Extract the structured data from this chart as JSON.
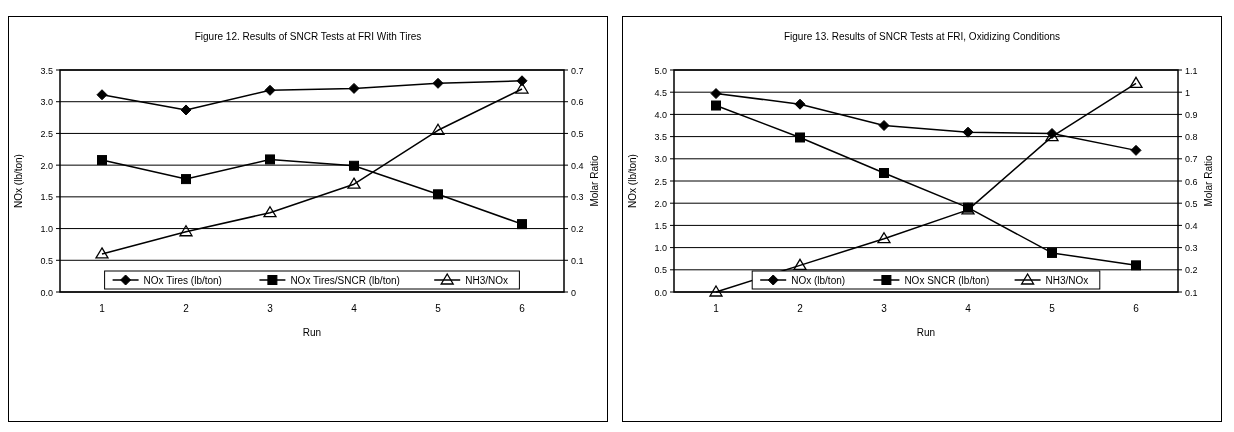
{
  "chart_data": [
    {
      "type": "line",
      "title": "Figure 12.  Results of SNCR Tests at FRI With Tires",
      "xlabel": "Run",
      "ylabel": "NOx (lb/ton)",
      "y2label": "Molar Ratio",
      "categories": [
        "1",
        "2",
        "3",
        "4",
        "5",
        "6"
      ],
      "ylim": [
        0,
        3.5
      ],
      "yticks": [
        {
          "value": 0,
          "label": "0.0"
        },
        0.5,
        {
          "value": 1,
          "label": "1.0"
        },
        1.5,
        {
          "value": 2,
          "label": "2.0"
        },
        2.5,
        {
          "value": 3,
          "label": "3.0"
        },
        3.5
      ],
      "y2lim": [
        0,
        0.7
      ],
      "y2ticks": [
        0,
        0.1,
        0.2,
        0.3,
        0.4,
        0.5,
        0.6,
        0.7
      ],
      "grid": "y",
      "legend": "bottom",
      "series": [
        {
          "name": "NOx Tires (lb/ton)",
          "color": "#000000",
          "marker": "diamond",
          "values": [
            3.11,
            2.87,
            3.18,
            3.21,
            3.29,
            3.33
          ]
        },
        {
          "name": "NOx Tires/SNCR (lb/ton)",
          "color": "#000000",
          "marker": "square",
          "values": [
            2.08,
            1.78,
            2.09,
            1.99,
            1.54,
            1.07
          ]
        },
        {
          "name": "NH3/NOx",
          "color": "#000000",
          "marker": "triangle",
          "axis": "y2",
          "values": [
            0.12,
            0.19,
            0.25,
            0.34,
            0.51,
            0.64
          ]
        }
      ]
    },
    {
      "type": "line",
      "title": "Figure 13.  Results of SNCR Tests at FRI, Oxidizing Conditions",
      "xlabel": "Run",
      "ylabel": "NOx (lb/ton)",
      "y2label": "Molar Ratio",
      "categories": [
        "1",
        "2",
        "3",
        "4",
        "5",
        "6"
      ],
      "ylim": [
        0,
        5
      ],
      "yticks": [
        {
          "value": 0,
          "label": "0.0"
        },
        0.5,
        {
          "value": 1,
          "label": "1.0"
        },
        1.5,
        {
          "value": 2,
          "label": "2.0"
        },
        2.5,
        {
          "value": 3,
          "label": "3.0"
        },
        3.5,
        {
          "value": 4,
          "label": "4.0"
        },
        4.5,
        {
          "value": 5,
          "label": "5.0"
        }
      ],
      "y2lim": [
        0.1,
        1.1
      ],
      "y2ticks": [
        0.1,
        0.2,
        0.3,
        0.4,
        0.5,
        0.6,
        0.7,
        0.8,
        0.9,
        1,
        1.1
      ],
      "grid": "y",
      "legend": "bottom",
      "series": [
        {
          "name": "NOx (lb/ton)",
          "color": "#000000",
          "marker": "diamond",
          "values": [
            4.47,
            4.23,
            3.75,
            3.6,
            3.57,
            3.19
          ]
        },
        {
          "name": "NOx SNCR (lb/ton)",
          "color": "#000000",
          "marker": "square",
          "values": [
            4.2,
            3.48,
            2.68,
            1.9,
            0.88,
            0.6
          ]
        },
        {
          "name": "NH3/NOx",
          "color": "#000000",
          "marker": "triangle",
          "axis": "y2",
          "values": [
            0.1,
            0.22,
            0.34,
            0.47,
            0.8,
            1.04
          ]
        }
      ]
    }
  ]
}
